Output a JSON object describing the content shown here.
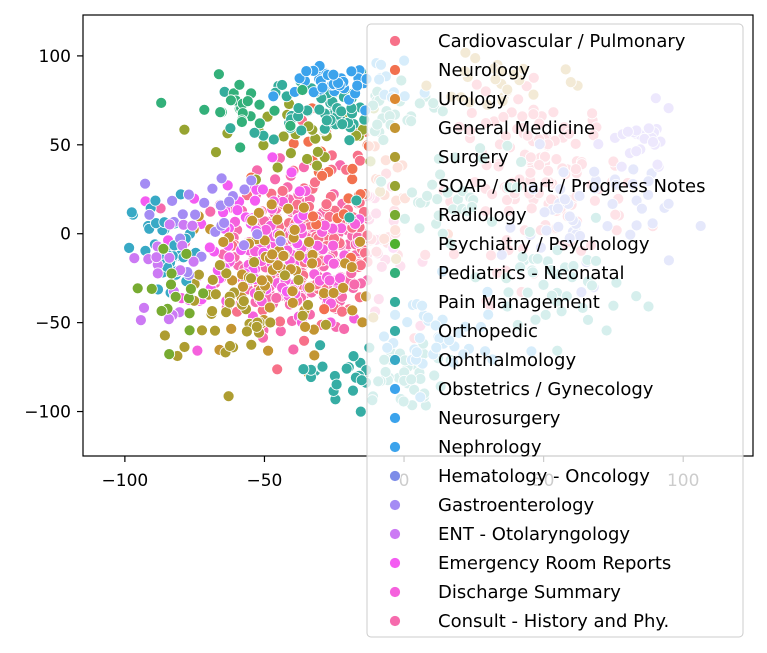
{
  "chart_data": {
    "type": "scatter",
    "title": "",
    "xlabel": "",
    "ylabel": "",
    "xlim": [
      -115,
      125
    ],
    "ylim": [
      -125,
      123
    ],
    "xticks": [
      -100,
      -50,
      0,
      50,
      100
    ],
    "yticks": [
      -100,
      -50,
      0,
      50,
      100
    ],
    "xtick_labels": [
      "−100",
      "−50",
      "0",
      "50",
      "100"
    ],
    "ytick_labels": [
      "−100",
      "−50",
      "0",
      "50",
      "100"
    ],
    "grid": false,
    "legend_position": "upper-right",
    "series": [
      {
        "name": "Cardiovascular / Pulmonary",
        "color": "#f77189"
      },
      {
        "name": "Neurology",
        "color": "#f2714f"
      },
      {
        "name": "Urology",
        "color": "#dc8932"
      },
      {
        "name": "General Medicine",
        "color": "#c39532"
      },
      {
        "name": "Surgery",
        "color": "#ae9d31"
      },
      {
        "name": "SOAP / Chart / Progress Notes",
        "color": "#97a431"
      },
      {
        "name": "Radiology",
        "color": "#77ab31"
      },
      {
        "name": "Psychiatry / Psychology",
        "color": "#50b131"
      },
      {
        "name": "Pediatrics - Neonatal",
        "color": "#33b07a"
      },
      {
        "name": "Pain Management",
        "color": "#35ad9c"
      },
      {
        "name": "Orthopedic",
        "color": "#36ada4"
      },
      {
        "name": "Ophthalmology",
        "color": "#38a9c5"
      },
      {
        "name": "Obstetrics / Gynecology",
        "color": "#3ba3ec"
      },
      {
        "name": "Neurosurgery",
        "color": "#3ba3ec"
      },
      {
        "name": "Nephrology",
        "color": "#3ba3ec"
      },
      {
        "name": "Hematology - Oncology",
        "color": "#7d8ce8"
      },
      {
        "name": "Gastroenterology",
        "color": "#a48cf4"
      },
      {
        "name": "ENT - Otolaryngology",
        "color": "#cc7af4"
      },
      {
        "name": "Emergency Room Reports",
        "color": "#f45cf2"
      },
      {
        "name": "Discharge Summary",
        "color": "#f561dd"
      },
      {
        "name": "Consult - History and Phy.",
        "color": "#f66bad"
      }
    ],
    "clusters": [
      {
        "series": 20,
        "cx": -35,
        "cy": -10,
        "sx": 25,
        "sy": 35,
        "n": 260
      },
      {
        "series": 0,
        "cx": -30,
        "cy": -5,
        "sx": 25,
        "sy": 35,
        "n": 110
      },
      {
        "series": 19,
        "cx": -40,
        "cy": -20,
        "sx": 25,
        "sy": 30,
        "n": 90
      },
      {
        "series": 18,
        "cx": -55,
        "cy": 0,
        "sx": 22,
        "sy": 30,
        "n": 50
      },
      {
        "series": 1,
        "cx": -20,
        "cy": 30,
        "sx": 25,
        "sy": 30,
        "n": 40
      },
      {
        "series": 3,
        "cx": -45,
        "cy": -25,
        "sx": 30,
        "sy": 40,
        "n": 70
      },
      {
        "series": 4,
        "cx": -60,
        "cy": -40,
        "sx": 25,
        "sy": 30,
        "n": 45
      },
      {
        "series": 5,
        "cx": -35,
        "cy": 55,
        "sx": 25,
        "sy": 25,
        "n": 35
      },
      {
        "series": 9,
        "cx": -25,
        "cy": 70,
        "sx": 25,
        "sy": 15,
        "n": 80
      },
      {
        "series": 10,
        "cx": -10,
        "cy": -80,
        "sx": 20,
        "sy": 15,
        "n": 60
      },
      {
        "series": 11,
        "cx": -85,
        "cy": -10,
        "sx": 10,
        "sy": 25,
        "n": 40
      },
      {
        "series": 12,
        "cx": -20,
        "cy": 85,
        "sx": 20,
        "sy": 10,
        "n": 45
      },
      {
        "series": 16,
        "cx": -70,
        "cy": 10,
        "sx": 20,
        "sy": 25,
        "n": 25
      },
      {
        "series": 17,
        "cx": -85,
        "cy": -20,
        "sx": 10,
        "sy": 25,
        "n": 20
      },
      {
        "series": 8,
        "cx": -60,
        "cy": 70,
        "sx": 15,
        "sy": 15,
        "n": 25
      },
      {
        "series": 6,
        "cx": -80,
        "cy": -30,
        "sx": 15,
        "sy": 20,
        "n": 15
      },
      {
        "series": 0,
        "cx": 50,
        "cy": 30,
        "sx": 25,
        "sy": 40,
        "n": 140
      },
      {
        "series": 15,
        "cx": 65,
        "cy": 10,
        "sx": 25,
        "sy": 30,
        "n": 50
      },
      {
        "series": 10,
        "cx": 55,
        "cy": -30,
        "sx": 20,
        "sy": 25,
        "n": 40
      },
      {
        "series": 9,
        "cx": 20,
        "cy": 20,
        "sx": 25,
        "sy": 30,
        "n": 40
      },
      {
        "series": 16,
        "cx": 85,
        "cy": 50,
        "sx": 10,
        "sy": 15,
        "n": 25
      },
      {
        "series": 13,
        "cx": 10,
        "cy": -60,
        "sx": 20,
        "sy": 25,
        "n": 40
      },
      {
        "series": 3,
        "cx": 35,
        "cy": 85,
        "sx": 20,
        "sy": 15,
        "n": 25
      }
    ]
  }
}
